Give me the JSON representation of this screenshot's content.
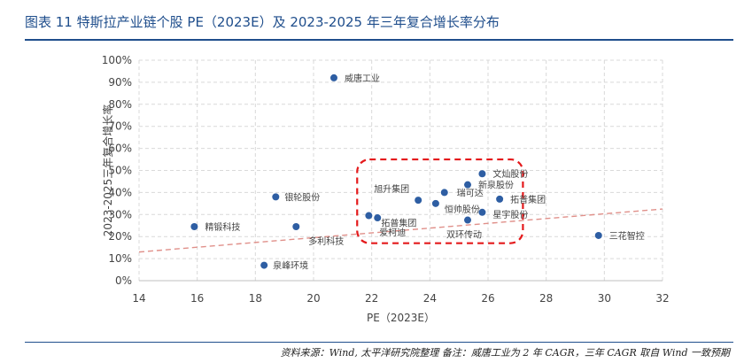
{
  "title": "图表 11 特斯拉产业链个股 PE（2023E）及 2023-2025 年三年复合增长率分布",
  "source": "资料来源：Wind, 太平洋研究院整理  备注：威唐工业为 2 年 CAGR，三年 CAGR 取自 Wind 一致预期",
  "chart_data": {
    "type": "scatter",
    "xlabel": "PE（2023E）",
    "ylabel": "2023-2025三年复合增长率",
    "xlim": [
      14,
      32
    ],
    "ylim": [
      0,
      100
    ],
    "x_ticks": [
      "14",
      "16",
      "18",
      "20",
      "22",
      "24",
      "26",
      "28",
      "30",
      "32"
    ],
    "y_ticks": [
      "0%",
      "10%",
      "20%",
      "30%",
      "40%",
      "50%",
      "60%",
      "70%",
      "80%",
      "90%",
      "100%"
    ],
    "grid": true,
    "trendline": {
      "style": "dashed",
      "color": "#e0908a",
      "y_at_xmin": 13,
      "y_at_xmax": 32.5
    },
    "highlight_box": {
      "x_range": [
        21.5,
        27.2
      ],
      "y_range": [
        17,
        55
      ],
      "color": "#e41a1c"
    },
    "points": [
      {
        "label": "精锻科技",
        "x": 15.9,
        "y": 24.5
      },
      {
        "label": "银轮股份",
        "x": 18.7,
        "y": 38
      },
      {
        "label": "多利科技",
        "x": 19.4,
        "y": 24.5
      },
      {
        "label": "威唐工业",
        "x": 20.7,
        "y": 92
      },
      {
        "label": "泉峰环境",
        "x": 18.3,
        "y": 7
      },
      {
        "label": "拓普集团",
        "x": 21.9,
        "y": 29.5
      },
      {
        "label": "爱柯迪",
        "x": 22.2,
        "y": 28.5
      },
      {
        "label": "旭升集团",
        "x": 23.6,
        "y": 36.5
      },
      {
        "label": "瑞可达",
        "x": 24.5,
        "y": 40
      },
      {
        "label": "恒帅股份",
        "x": 24.2,
        "y": 35
      },
      {
        "label": "新泉股份",
        "x": 25.3,
        "y": 43.5
      },
      {
        "label": "文灿股份",
        "x": 25.8,
        "y": 48.5
      },
      {
        "label": "拓普集团",
        "x": 26.4,
        "y": 37
      },
      {
        "label": "双环传动",
        "x": 25.3,
        "y": 27.5
      },
      {
        "label": "星宇股份",
        "x": 25.8,
        "y": 31
      },
      {
        "label": "三花智控",
        "x": 29.8,
        "y": 20.5
      }
    ],
    "point_color": "#2e5ea3"
  }
}
